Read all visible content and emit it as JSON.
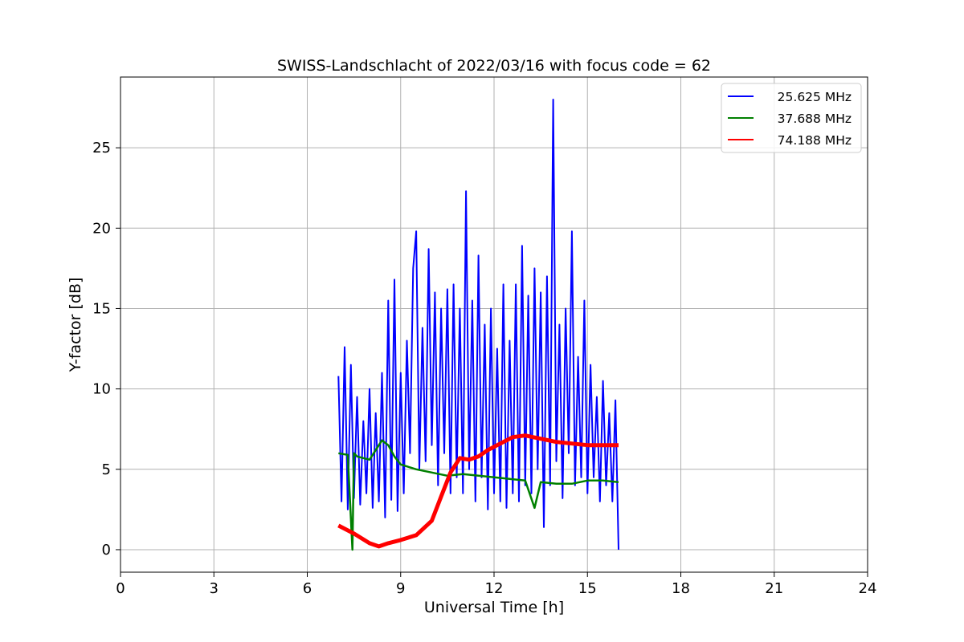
{
  "chart_data": {
    "type": "line",
    "title": "SWISS-Landschlacht of 2022/03/16 with focus code = 62",
    "xlabel": "Universal Time [h]",
    "ylabel": "Y-factor [dB]",
    "xlim": [
      0,
      24
    ],
    "ylim": [
      -1.4,
      29.4
    ],
    "xticks": [
      0,
      3,
      6,
      9,
      12,
      15,
      18,
      21,
      24
    ],
    "yticks": [
      0,
      5,
      10,
      15,
      20,
      25
    ],
    "grid": true,
    "legend_position": "upper-right",
    "series": [
      {
        "name": "25.625 MHz",
        "color": "#0000ff",
        "x": [
          7.0,
          7.1,
          7.2,
          7.3,
          7.4,
          7.5,
          7.6,
          7.7,
          7.8,
          7.9,
          8.0,
          8.1,
          8.2,
          8.3,
          8.4,
          8.5,
          8.6,
          8.7,
          8.8,
          8.9,
          9.0,
          9.1,
          9.2,
          9.3,
          9.4,
          9.5,
          9.6,
          9.7,
          9.8,
          9.9,
          10.0,
          10.1,
          10.2,
          10.3,
          10.4,
          10.5,
          10.6,
          10.7,
          10.8,
          10.9,
          11.0,
          11.1,
          11.2,
          11.3,
          11.4,
          11.5,
          11.6,
          11.7,
          11.8,
          11.9,
          12.0,
          12.1,
          12.2,
          12.3,
          12.4,
          12.5,
          12.6,
          12.7,
          12.8,
          12.9,
          13.0,
          13.1,
          13.2,
          13.3,
          13.4,
          13.5,
          13.6,
          13.7,
          13.8,
          13.9,
          14.0,
          14.1,
          14.2,
          14.3,
          14.4,
          14.5,
          14.6,
          14.7,
          14.8,
          14.9,
          15.0,
          15.1,
          15.2,
          15.3,
          15.4,
          15.5,
          15.6,
          15.7,
          15.8,
          15.9,
          16.0
        ],
        "y": [
          10.8,
          3.0,
          12.6,
          2.5,
          11.5,
          3.2,
          9.5,
          2.8,
          8.0,
          3.5,
          10.0,
          2.6,
          8.5,
          3.0,
          11.0,
          2.0,
          15.5,
          3.1,
          16.8,
          2.4,
          11.0,
          3.5,
          13.0,
          6.0,
          17.5,
          19.8,
          5.0,
          13.8,
          5.5,
          18.7,
          6.5,
          16.0,
          4.0,
          15.0,
          6.0,
          16.2,
          3.5,
          16.5,
          4.5,
          15.0,
          3.5,
          22.3,
          5.0,
          15.5,
          3.0,
          18.3,
          4.5,
          14.0,
          2.5,
          15.0,
          3.5,
          12.5,
          3.0,
          16.5,
          2.6,
          13.0,
          3.5,
          16.5,
          3.0,
          18.9,
          4.0,
          15.8,
          3.5,
          17.5,
          5.0,
          16.0,
          1.4,
          17.0,
          4.0,
          28.0,
          5.5,
          14.0,
          3.2,
          15.0,
          6.0,
          19.8,
          4.0,
          12.0,
          4.5,
          15.5,
          3.5,
          11.5,
          4.5,
          9.5,
          3.0,
          10.5,
          4.0,
          8.5,
          3.0,
          9.3,
          0.0
        ],
        "values_approximate": true
      },
      {
        "name": "37.688 MHz",
        "color": "#008000",
        "x": [
          7.0,
          7.3,
          7.45,
          7.5,
          7.6,
          8.0,
          8.4,
          8.6,
          8.8,
          9.0,
          9.5,
          10.0,
          10.5,
          11.0,
          11.5,
          12.0,
          12.5,
          13.0,
          13.3,
          13.5,
          14.0,
          14.5,
          15.0,
          15.5,
          16.0
        ],
        "y": [
          6.0,
          5.9,
          0.0,
          6.0,
          5.8,
          5.6,
          6.8,
          6.5,
          5.8,
          5.3,
          5.0,
          4.8,
          4.6,
          4.7,
          4.6,
          4.5,
          4.4,
          4.3,
          2.6,
          4.2,
          4.1,
          4.1,
          4.3,
          4.3,
          4.2
        ],
        "values_approximate": true
      },
      {
        "name": "74.188 MHz",
        "color": "#ff0000",
        "x": [
          7.0,
          7.5,
          8.0,
          8.3,
          8.6,
          9.0,
          9.5,
          10.0,
          10.3,
          10.6,
          10.9,
          11.2,
          11.5,
          11.8,
          12.2,
          12.6,
          13.0,
          13.5,
          14.0,
          14.5,
          15.0,
          15.5,
          16.0
        ],
        "y": [
          1.5,
          1.0,
          0.4,
          0.2,
          0.4,
          0.6,
          0.9,
          1.8,
          3.3,
          4.8,
          5.7,
          5.6,
          5.8,
          6.2,
          6.6,
          7.0,
          7.1,
          6.9,
          6.7,
          6.6,
          6.5,
          6.5,
          6.5
        ],
        "values_approximate": true
      }
    ]
  }
}
